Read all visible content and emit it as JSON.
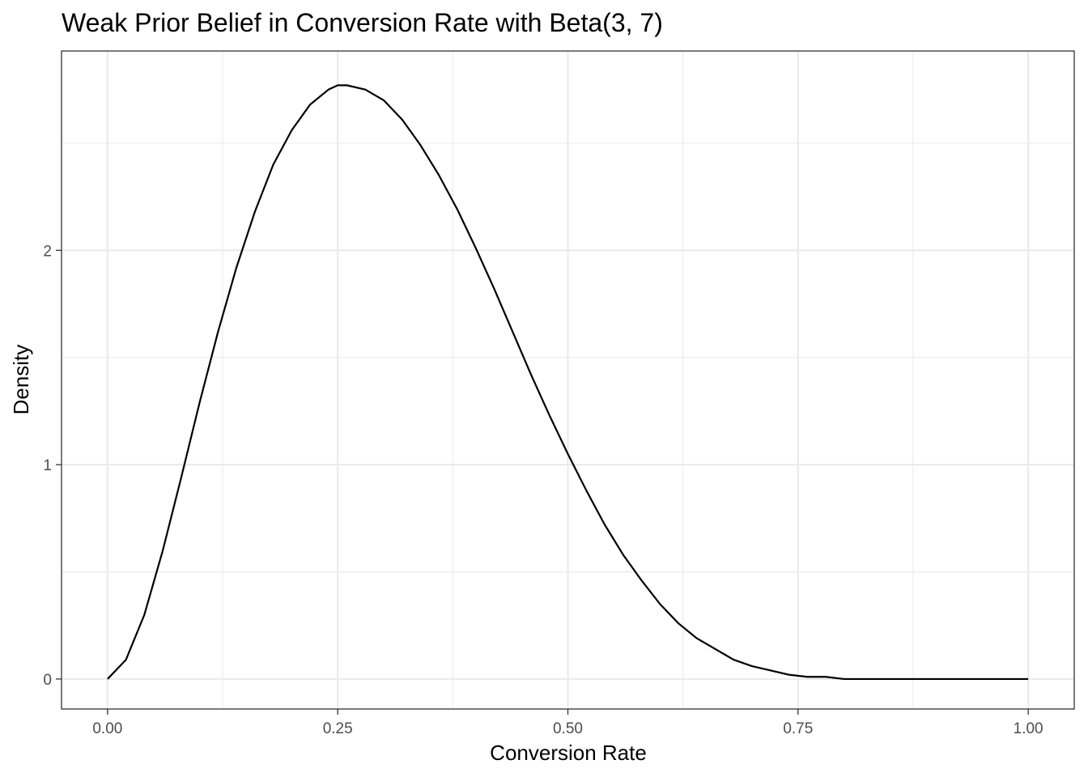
{
  "chart_data": {
    "type": "line",
    "title": "Weak Prior Belief in Conversion Rate with Beta(3, 7)",
    "xlabel": "Conversion Rate",
    "ylabel": "Density",
    "xlim": [
      -0.05,
      1.05
    ],
    "ylim": [
      -0.14,
      2.93
    ],
    "xticks": [
      0,
      0.25,
      0.5,
      0.75,
      1
    ],
    "xtick_labels": [
      "0.00",
      "0.25",
      "0.50",
      "0.75",
      "1.00"
    ],
    "yticks": [
      0,
      1,
      2
    ],
    "ytick_labels": [
      "0",
      "1",
      "2"
    ],
    "x_minor_ticks": [
      0.125,
      0.375,
      0.625,
      0.875
    ],
    "y_minor_ticks": [
      0.5,
      1.5,
      2.5
    ],
    "grid": true,
    "legend": "none",
    "line_color": "#000000",
    "grid_color": "#ebebeb",
    "panel_border_color": "#333333",
    "series": [
      {
        "x": [
          0,
          0.02,
          0.04,
          0.06,
          0.08,
          0.1,
          0.12,
          0.14,
          0.16,
          0.18,
          0.2,
          0.22,
          0.24,
          0.25,
          0.26,
          0.28,
          0.3,
          0.32,
          0.34,
          0.36,
          0.38,
          0.4,
          0.42,
          0.44,
          0.46,
          0.48,
          0.5,
          0.52,
          0.54,
          0.56,
          0.58,
          0.6,
          0.62,
          0.64,
          0.66,
          0.68,
          0.7,
          0.72,
          0.74,
          0.76,
          0.78,
          0.8,
          0.82,
          0.84,
          0.86,
          0.88,
          0.9,
          0.92,
          0.94,
          0.96,
          0.98,
          1
        ],
        "y": [
          0,
          0.09,
          0.3,
          0.6,
          0.94,
          1.29,
          1.62,
          1.92,
          2.18,
          2.4,
          2.56,
          2.68,
          2.75,
          2.77,
          2.77,
          2.75,
          2.7,
          2.61,
          2.49,
          2.35,
          2.19,
          2.01,
          1.82,
          1.62,
          1.42,
          1.23,
          1.05,
          0.88,
          0.72,
          0.58,
          0.46,
          0.35,
          0.26,
          0.19,
          0.14,
          0.09,
          0.06,
          0.04,
          0.02,
          0.01,
          0.01,
          0,
          0,
          0,
          0,
          0,
          0,
          0,
          0,
          0,
          0,
          0
        ]
      }
    ]
  }
}
